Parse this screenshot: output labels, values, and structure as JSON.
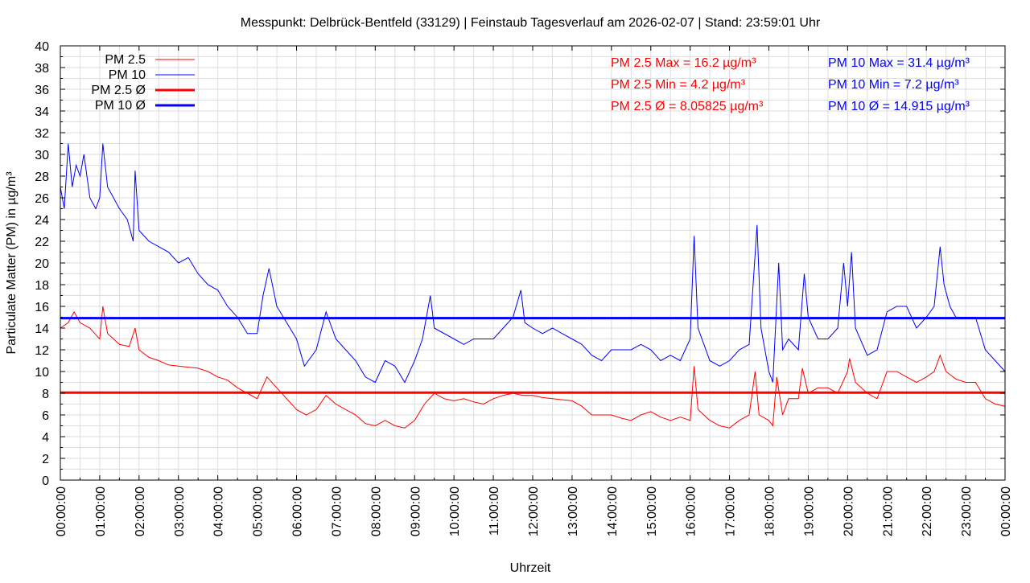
{
  "chart_data": {
    "type": "line",
    "title": "Messpunkt: Delbrück-Bentfeld (33129) | Feinstaub Tagesverlauf am 2026-02-07 | Stand: 23:59:01 Uhr",
    "xlabel": "Uhrzeit",
    "ylabel": "Particulate Matter (PM) in µg/m³",
    "xlim": [
      0,
      24
    ],
    "ylim": [
      0,
      40
    ],
    "y_ticks": [
      0,
      2,
      4,
      6,
      8,
      10,
      12,
      14,
      16,
      18,
      20,
      22,
      24,
      26,
      28,
      30,
      32,
      34,
      36,
      38,
      40
    ],
    "x_tick_labels": [
      "00:00:00",
      "01:00:00",
      "02:00:00",
      "03:00:00",
      "04:00:00",
      "05:00:00",
      "06:00:00",
      "07:00:00",
      "08:00:00",
      "09:00:00",
      "10:00:00",
      "11:00:00",
      "12:00:00",
      "13:00:00",
      "14:00:00",
      "15:00:00",
      "16:00:00",
      "17:00:00",
      "18:00:00",
      "19:00:00",
      "20:00:00",
      "21:00:00",
      "22:00:00",
      "23:00:00",
      "00:00:00"
    ],
    "grid": true,
    "legend_position": "top-left",
    "legend": [
      "PM 2.5",
      "PM 10",
      "PM 2.5 Ø",
      "PM 10 Ø"
    ],
    "colors": {
      "pm25": "#ff0000",
      "pm10": "#0000ff"
    },
    "series": [
      {
        "name": "PM 10",
        "color": "#0000ff",
        "points": [
          [
            0,
            27
          ],
          [
            0.1,
            25
          ],
          [
            0.2,
            31
          ],
          [
            0.3,
            27
          ],
          [
            0.4,
            29
          ],
          [
            0.5,
            28
          ],
          [
            0.6,
            30
          ],
          [
            0.75,
            26
          ],
          [
            0.9,
            25
          ],
          [
            1.0,
            26
          ],
          [
            1.08,
            31
          ],
          [
            1.2,
            27
          ],
          [
            1.5,
            25
          ],
          [
            1.7,
            24
          ],
          [
            1.85,
            22
          ],
          [
            1.9,
            28.5
          ],
          [
            2.0,
            23
          ],
          [
            2.25,
            22
          ],
          [
            2.5,
            21.5
          ],
          [
            2.75,
            21
          ],
          [
            3.0,
            20
          ],
          [
            3.25,
            20.5
          ],
          [
            3.5,
            19
          ],
          [
            3.75,
            18
          ],
          [
            4.0,
            17.5
          ],
          [
            4.25,
            16
          ],
          [
            4.5,
            15
          ],
          [
            4.75,
            13.5
          ],
          [
            5.0,
            13.5
          ],
          [
            5.15,
            17
          ],
          [
            5.3,
            19.5
          ],
          [
            5.5,
            16
          ],
          [
            5.75,
            14.5
          ],
          [
            6.0,
            13
          ],
          [
            6.2,
            10.5
          ],
          [
            6.5,
            12
          ],
          [
            6.75,
            15.5
          ],
          [
            7.0,
            13
          ],
          [
            7.25,
            12
          ],
          [
            7.5,
            11
          ],
          [
            7.75,
            9.5
          ],
          [
            8.0,
            9
          ],
          [
            8.25,
            11
          ],
          [
            8.5,
            10.5
          ],
          [
            8.75,
            9
          ],
          [
            9.0,
            11
          ],
          [
            9.2,
            13
          ],
          [
            9.4,
            17
          ],
          [
            9.5,
            14
          ],
          [
            10.0,
            13
          ],
          [
            10.25,
            12.5
          ],
          [
            10.5,
            13
          ],
          [
            10.75,
            13
          ],
          [
            11.0,
            13
          ],
          [
            11.25,
            14
          ],
          [
            11.5,
            15
          ],
          [
            11.7,
            17.5
          ],
          [
            11.8,
            14.5
          ],
          [
            12.0,
            14
          ],
          [
            12.25,
            13.5
          ],
          [
            12.5,
            14
          ],
          [
            12.75,
            13.5
          ],
          [
            13.0,
            13
          ],
          [
            13.25,
            12.5
          ],
          [
            13.5,
            11.5
          ],
          [
            13.75,
            11
          ],
          [
            14.0,
            12
          ],
          [
            14.25,
            12
          ],
          [
            14.5,
            12
          ],
          [
            14.75,
            12.5
          ],
          [
            15.0,
            12
          ],
          [
            15.25,
            11
          ],
          [
            15.5,
            11.5
          ],
          [
            15.75,
            11
          ],
          [
            16.0,
            13
          ],
          [
            16.1,
            22.5
          ],
          [
            16.2,
            14
          ],
          [
            16.5,
            11
          ],
          [
            16.75,
            10.5
          ],
          [
            17.0,
            11
          ],
          [
            17.25,
            12
          ],
          [
            17.5,
            12.5
          ],
          [
            17.7,
            23.5
          ],
          [
            17.8,
            14
          ],
          [
            18.0,
            10
          ],
          [
            18.1,
            9
          ],
          [
            18.25,
            20
          ],
          [
            18.35,
            12
          ],
          [
            18.5,
            13
          ],
          [
            18.75,
            12
          ],
          [
            18.9,
            19
          ],
          [
            19.0,
            15
          ],
          [
            19.25,
            13
          ],
          [
            19.5,
            13
          ],
          [
            19.75,
            14
          ],
          [
            19.9,
            20
          ],
          [
            20.0,
            16
          ],
          [
            20.1,
            21
          ],
          [
            20.2,
            14
          ],
          [
            20.5,
            11.5
          ],
          [
            20.75,
            12
          ],
          [
            21.0,
            15.5
          ],
          [
            21.25,
            16
          ],
          [
            21.5,
            16
          ],
          [
            21.75,
            14
          ],
          [
            22.0,
            15
          ],
          [
            22.2,
            16
          ],
          [
            22.35,
            21.5
          ],
          [
            22.45,
            18
          ],
          [
            22.6,
            16
          ],
          [
            22.75,
            15
          ],
          [
            23.0,
            15
          ],
          [
            23.25,
            15
          ],
          [
            23.5,
            12
          ],
          [
            23.75,
            11
          ],
          [
            24.0,
            10
          ]
        ]
      },
      {
        "name": "PM 2.5",
        "color": "#ff0000",
        "points": [
          [
            0,
            14
          ],
          [
            0.2,
            14.5
          ],
          [
            0.35,
            15.5
          ],
          [
            0.5,
            14.5
          ],
          [
            0.75,
            14
          ],
          [
            1.0,
            13
          ],
          [
            1.08,
            16
          ],
          [
            1.2,
            13.5
          ],
          [
            1.5,
            12.5
          ],
          [
            1.75,
            12.3
          ],
          [
            1.9,
            14
          ],
          [
            2.0,
            12
          ],
          [
            2.25,
            11.3
          ],
          [
            2.5,
            11
          ],
          [
            2.75,
            10.6
          ],
          [
            3.0,
            10.5
          ],
          [
            3.25,
            10.4
          ],
          [
            3.5,
            10.3
          ],
          [
            3.75,
            10
          ],
          [
            4.0,
            9.5
          ],
          [
            4.25,
            9.2
          ],
          [
            4.5,
            8.5
          ],
          [
            4.75,
            8
          ],
          [
            5.0,
            7.5
          ],
          [
            5.25,
            9.5
          ],
          [
            5.5,
            8.5
          ],
          [
            5.75,
            7.5
          ],
          [
            6.0,
            6.5
          ],
          [
            6.25,
            6
          ],
          [
            6.5,
            6.5
          ],
          [
            6.75,
            7.8
          ],
          [
            7.0,
            7
          ],
          [
            7.25,
            6.5
          ],
          [
            7.5,
            6
          ],
          [
            7.75,
            5.2
          ],
          [
            8.0,
            5
          ],
          [
            8.25,
            5.5
          ],
          [
            8.5,
            5
          ],
          [
            8.75,
            4.8
          ],
          [
            9.0,
            5.5
          ],
          [
            9.25,
            7
          ],
          [
            9.5,
            8
          ],
          [
            9.75,
            7.5
          ],
          [
            10.0,
            7.3
          ],
          [
            10.25,
            7.5
          ],
          [
            10.5,
            7.2
          ],
          [
            10.75,
            7
          ],
          [
            11.0,
            7.5
          ],
          [
            11.25,
            7.8
          ],
          [
            11.5,
            8
          ],
          [
            11.75,
            7.8
          ],
          [
            12.0,
            7.8
          ],
          [
            12.25,
            7.6
          ],
          [
            12.5,
            7.5
          ],
          [
            12.75,
            7.4
          ],
          [
            13.0,
            7.3
          ],
          [
            13.25,
            6.8
          ],
          [
            13.5,
            6
          ],
          [
            13.75,
            6
          ],
          [
            14.0,
            6
          ],
          [
            14.25,
            5.7
          ],
          [
            14.5,
            5.5
          ],
          [
            14.75,
            6
          ],
          [
            15.0,
            6.3
          ],
          [
            15.25,
            5.8
          ],
          [
            15.5,
            5.5
          ],
          [
            15.75,
            5.8
          ],
          [
            16.0,
            5.5
          ],
          [
            16.1,
            10.5
          ],
          [
            16.2,
            6.5
          ],
          [
            16.5,
            5.5
          ],
          [
            16.75,
            5
          ],
          [
            17.0,
            4.8
          ],
          [
            17.25,
            5.5
          ],
          [
            17.5,
            6
          ],
          [
            17.65,
            10
          ],
          [
            17.75,
            6
          ],
          [
            18.0,
            5.5
          ],
          [
            18.1,
            5
          ],
          [
            18.2,
            9.5
          ],
          [
            18.35,
            6
          ],
          [
            18.5,
            7.5
          ],
          [
            18.75,
            7.5
          ],
          [
            18.85,
            10.3
          ],
          [
            19.0,
            8
          ],
          [
            19.25,
            8.5
          ],
          [
            19.5,
            8.5
          ],
          [
            19.75,
            8
          ],
          [
            20.0,
            10
          ],
          [
            20.05,
            11.2
          ],
          [
            20.2,
            9
          ],
          [
            20.5,
            8
          ],
          [
            20.75,
            7.5
          ],
          [
            21.0,
            10
          ],
          [
            21.25,
            10
          ],
          [
            21.5,
            9.5
          ],
          [
            21.75,
            9
          ],
          [
            22.0,
            9.5
          ],
          [
            22.2,
            10
          ],
          [
            22.35,
            11.5
          ],
          [
            22.5,
            10
          ],
          [
            22.75,
            9.3
          ],
          [
            23.0,
            9
          ],
          [
            23.25,
            9
          ],
          [
            23.5,
            7.5
          ],
          [
            23.75,
            7
          ],
          [
            24.0,
            6.8
          ]
        ]
      }
    ],
    "averages": {
      "pm25": 8.05825,
      "pm10": 14.915
    },
    "annotations": {
      "pm25_max": "PM 2.5 Max = 16.2 µg/m³",
      "pm25_min": "PM 2.5 Min = 4.2 µg/m³",
      "pm25_avg": "PM 2.5 Ø = 8.05825 µg/m³",
      "pm10_max": "PM 10 Max = 31.4 µg/m³",
      "pm10_min": "PM 10 Min = 7.2 µg/m³",
      "pm10_avg": "PM 10 Ø = 14.915 µg/m³"
    }
  }
}
